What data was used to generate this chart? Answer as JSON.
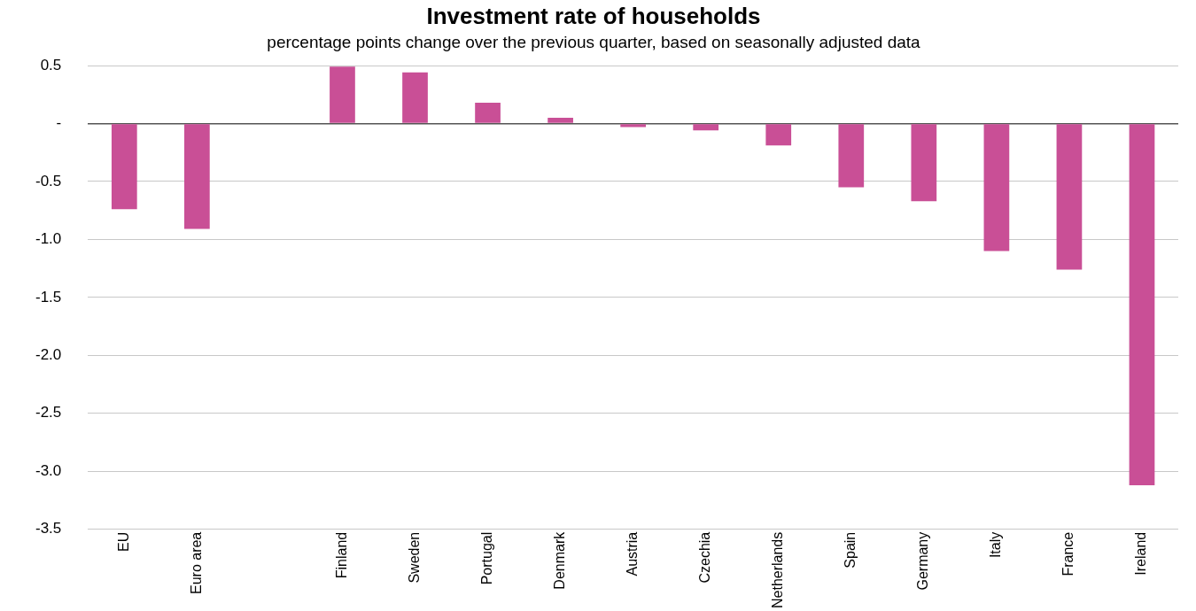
{
  "chart_data": {
    "type": "bar",
    "title": "Investment rate of households",
    "subtitle": "percentage points change over the previous quarter, based on seasonally adjusted data",
    "categories": [
      "EU",
      "Euro area",
      null,
      "Finland",
      "Sweden",
      "Portugal",
      "Denmark",
      "Austria",
      "Czechia",
      "Netherlands",
      "Spain",
      "Germany",
      "Italy",
      "France",
      "Ireland"
    ],
    "values": [
      -0.74,
      -0.91,
      null,
      0.49,
      0.44,
      0.18,
      0.05,
      -0.03,
      -0.06,
      -0.19,
      -0.55,
      -0.67,
      -1.1,
      -1.26,
      -3.12
    ],
    "color": "#c94f96",
    "ylim": [
      -3.5,
      0.5
    ],
    "yticks": [
      {
        "value": 0.5,
        "label": "0.5"
      },
      {
        "value": 0,
        "label": "-"
      },
      {
        "value": -0.5,
        "label": "-0.5"
      },
      {
        "value": -1,
        "label": "-1.0"
      },
      {
        "value": -1.5,
        "label": "-1.5"
      },
      {
        "value": -2,
        "label": "-2.0"
      },
      {
        "value": -2.5,
        "label": "-2.5"
      },
      {
        "value": -3,
        "label": "-3.0"
      },
      {
        "value": -3.5,
        "label": "-3.5"
      }
    ],
    "grid": "y"
  }
}
